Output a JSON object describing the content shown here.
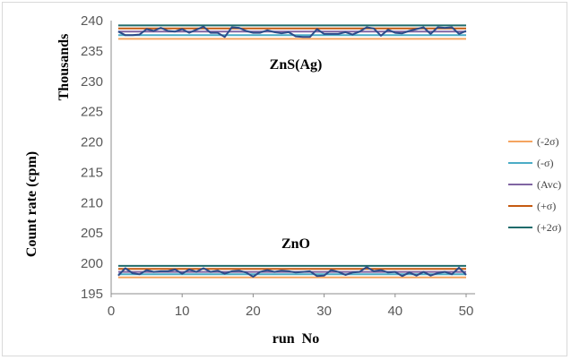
{
  "chart_data": {
    "type": "line",
    "xlabel": "run  No",
    "ylabel": "Count  rate  (cpm)",
    "yunit_label": "Thousands",
    "xlim": [
      0,
      50
    ],
    "ylim": [
      195,
      240
    ],
    "xticks": [
      0,
      10,
      20,
      30,
      40,
      50
    ],
    "yticks": [
      195,
      200,
      205,
      210,
      215,
      220,
      225,
      230,
      235,
      240
    ],
    "grid": false,
    "legend_position": "right",
    "annotations": [
      {
        "text": "ZnS(Ag)",
        "x": 28,
        "y": 233
      },
      {
        "text": "ZnO",
        "x": 28,
        "y": 203.3
      }
    ],
    "legend": [
      "(-2σ)",
      "(-σ)",
      "(Avc)",
      "(+σ)",
      "(+2σ)"
    ],
    "colors": {
      "minus2sigma": "#F4A460",
      "minus1sigma": "#4BACC6",
      "avg": "#8064A2",
      "plus1sigma": "#C55A11",
      "plus2sigma": "#1F6B6B",
      "data": "#2E4C8A"
    },
    "series": [
      {
        "label": "ZnS(Ag)",
        "x": [
          1,
          2,
          3,
          4,
          5,
          6,
          7,
          8,
          9,
          10,
          11,
          12,
          13,
          14,
          15,
          16,
          17,
          18,
          19,
          20,
          21,
          22,
          23,
          24,
          25,
          26,
          27,
          28,
          29,
          30,
          31,
          32,
          33,
          34,
          35,
          36,
          37,
          38,
          39,
          40,
          41,
          42,
          43,
          44,
          45,
          46,
          47,
          48,
          49,
          50
        ],
        "y": [
          238.2,
          237.6,
          237.6,
          237.7,
          238.6,
          238.3,
          238.8,
          238.3,
          238.2,
          238.6,
          238.0,
          238.5,
          239.0,
          238.0,
          238.0,
          237.3,
          238.9,
          238.8,
          238.3,
          238.0,
          238.0,
          238.4,
          238.1,
          237.9,
          238.1,
          237.4,
          237.3,
          237.3,
          238.6,
          237.8,
          237.8,
          237.8,
          238.1,
          237.7,
          238.2,
          238.9,
          238.7,
          237.5,
          238.5,
          238.0,
          237.9,
          238.3,
          238.6,
          238.9,
          237.8,
          238.9,
          238.8,
          238.9,
          237.8,
          238.3
        ],
        "sigma_lines": {
          "minus2sigma": 237.0,
          "minus1sigma": 237.6,
          "avg": 238.2,
          "plus1sigma": 238.7,
          "plus2sigma": 239.2
        }
      },
      {
        "label": "ZnO",
        "x": [
          1,
          2,
          3,
          4,
          5,
          6,
          7,
          8,
          9,
          10,
          11,
          12,
          13,
          14,
          15,
          16,
          17,
          18,
          19,
          20,
          21,
          22,
          23,
          24,
          25,
          26,
          27,
          28,
          29,
          30,
          31,
          32,
          33,
          34,
          35,
          36,
          37,
          38,
          39,
          40,
          41,
          42,
          43,
          44,
          45,
          46,
          47,
          48,
          49,
          50
        ],
        "y": [
          198.0,
          199.2,
          198.4,
          198.2,
          198.9,
          198.6,
          198.7,
          198.7,
          199.0,
          198.3,
          199.0,
          198.6,
          199.2,
          198.6,
          198.8,
          198.3,
          198.7,
          198.8,
          198.5,
          197.8,
          198.6,
          198.9,
          198.6,
          198.8,
          198.7,
          198.5,
          198.6,
          198.7,
          197.9,
          198.0,
          198.9,
          198.6,
          198.1,
          198.5,
          198.6,
          199.4,
          198.7,
          198.9,
          198.5,
          198.6,
          197.9,
          198.5,
          198.0,
          198.6,
          198.0,
          198.4,
          198.6,
          198.2,
          199.3,
          198.1
        ],
        "sigma_lines": {
          "minus2sigma": 197.7,
          "minus1sigma": 198.2,
          "avg": 198.6,
          "plus1sigma": 199.1,
          "plus2sigma": 199.6
        }
      }
    ]
  }
}
